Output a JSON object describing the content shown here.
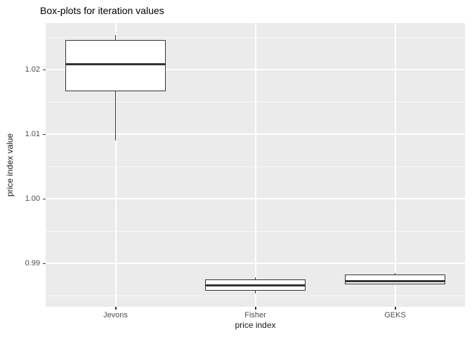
{
  "chart_data": {
    "type": "boxplot",
    "title": "Box-plots for iteration values",
    "xlabel": "price index",
    "ylabel": "price index value",
    "categories": [
      "Jevons",
      "Fisher",
      "GEKS"
    ],
    "y_ticks": [
      0.99,
      1.0,
      1.01,
      1.02
    ],
    "y_tick_labels": [
      "0.99",
      "1.00",
      "1.01",
      "1.02"
    ],
    "minor_gridlines": [
      0.985,
      0.995,
      1.005,
      1.015,
      1.025
    ],
    "ylim": [
      0.9833,
      1.0272
    ],
    "grid": "on",
    "legend": "none",
    "series": [
      {
        "name": "Jevons",
        "whisker_low": 1.009,
        "q1": 1.0167,
        "median": 1.0208,
        "q3": 1.0246,
        "whisker_high": 1.0254
      },
      {
        "name": "Fisher",
        "whisker_low": 0.9854,
        "q1": 0.9858,
        "median": 0.9866,
        "q3": 0.9875,
        "whisker_high": 0.9879
      },
      {
        "name": "GEKS",
        "whisker_low": 0.9868,
        "q1": 0.9868,
        "median": 0.9873,
        "q3": 0.9883,
        "whisker_high": 0.9885
      }
    ],
    "colors": {
      "background": "#FFFFFF",
      "panel_background": "#EBEBEB",
      "major_gridline": "#FFFFFF",
      "minor_gridline": "#FFFFFF",
      "box_fill": "#FFFFFF",
      "box_border": "#333333",
      "tick_label": "#4D4D4D",
      "title": "#000000",
      "axis_title": "#1A1A1A"
    }
  }
}
